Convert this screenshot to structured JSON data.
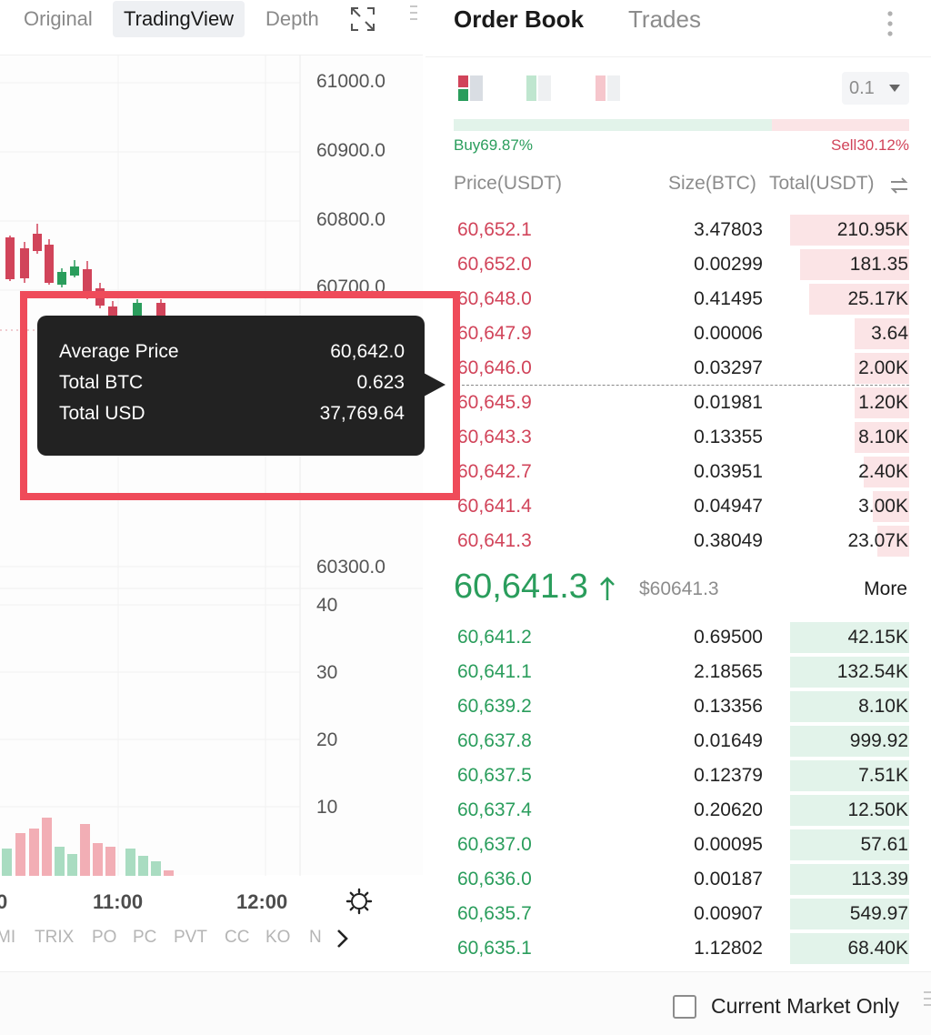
{
  "chart_tabs": {
    "original": "Original",
    "tradingview": "TradingView",
    "depth": "Depth"
  },
  "price_axis": [
    "61000.0",
    "60900.0",
    "60800.0",
    "60700.0",
    "60300.0"
  ],
  "volume_axis": [
    "40",
    "30",
    "20",
    "10"
  ],
  "time_axis": [
    "11:00",
    "12:00",
    "0"
  ],
  "indicators": [
    "MI",
    "TRIX",
    "PO",
    "PC",
    "PVT",
    "CC",
    "KO",
    "N"
  ],
  "tooltip": {
    "avg_label": "Average Price",
    "avg_value": "60,642.0",
    "btc_label": "Total BTC",
    "btc_value": "0.623",
    "usd_label": "Total USD",
    "usd_value": "37,769.64"
  },
  "order_book": {
    "title": "Order Book",
    "trades_tab": "Trades",
    "precision": "0.1",
    "buy_ratio": 0.6987,
    "buy_label": "Buy69.87%",
    "sell_label": "Sell30.12%",
    "col_price": "Price(USDT)",
    "col_size": "Size(BTC)",
    "col_total": "Total(USDT)",
    "asks": [
      {
        "price": "60,652.1",
        "size": "3.47803",
        "total": "210.95K",
        "depth": 0.26
      },
      {
        "price": "60,652.0",
        "size": "0.00299",
        "total": "181.35",
        "depth": 0.24
      },
      {
        "price": "60,648.0",
        "size": "0.41495",
        "total": "25.17K",
        "depth": 0.22
      },
      {
        "price": "60,647.9",
        "size": "0.00006",
        "total": "3.64",
        "depth": 0.12
      },
      {
        "price": "60,646.0",
        "size": "0.03297",
        "total": "2.00K",
        "depth": 0.12
      },
      {
        "price": "60,645.9",
        "size": "0.01981",
        "total": "1.20K",
        "depth": 0.12
      },
      {
        "price": "60,643.3",
        "size": "0.13355",
        "total": "8.10K",
        "depth": 0.12
      },
      {
        "price": "60,642.7",
        "size": "0.03951",
        "total": "2.40K",
        "depth": 0.1
      },
      {
        "price": "60,641.4",
        "size": "0.04947",
        "total": "3.00K",
        "depth": 0.08
      },
      {
        "price": "60,641.3",
        "size": "0.38049",
        "total": "23.07K",
        "depth": 0.07
      }
    ],
    "last_price": "60,641.3",
    "index_price": "$60641.3",
    "more_label": "More",
    "bids": [
      {
        "price": "60,641.2",
        "size": "0.69500",
        "total": "42.15K",
        "depth": 0.26
      },
      {
        "price": "60,641.1",
        "size": "2.18565",
        "total": "132.54K",
        "depth": 0.26
      },
      {
        "price": "60,639.2",
        "size": "0.13356",
        "total": "8.10K",
        "depth": 0.26
      },
      {
        "price": "60,637.8",
        "size": "0.01649",
        "total": "999.92",
        "depth": 0.26
      },
      {
        "price": "60,637.5",
        "size": "0.12379",
        "total": "7.51K",
        "depth": 0.26
      },
      {
        "price": "60,637.4",
        "size": "0.20620",
        "total": "12.50K",
        "depth": 0.26
      },
      {
        "price": "60,637.0",
        "size": "0.00095",
        "total": "57.61",
        "depth": 0.26
      },
      {
        "price": "60,636.0",
        "size": "0.00187",
        "total": "113.39",
        "depth": 0.26
      },
      {
        "price": "60,635.7",
        "size": "0.00907",
        "total": "549.97",
        "depth": 0.26
      },
      {
        "price": "60,635.1",
        "size": "1.12802",
        "total": "68.40K",
        "depth": 0.26
      }
    ]
  },
  "footer": {
    "market_only_label": "Current Market Only"
  },
  "colors": {
    "up": "#2a9d5c",
    "down": "#d1445a",
    "highlight": "#ef4b5a"
  }
}
